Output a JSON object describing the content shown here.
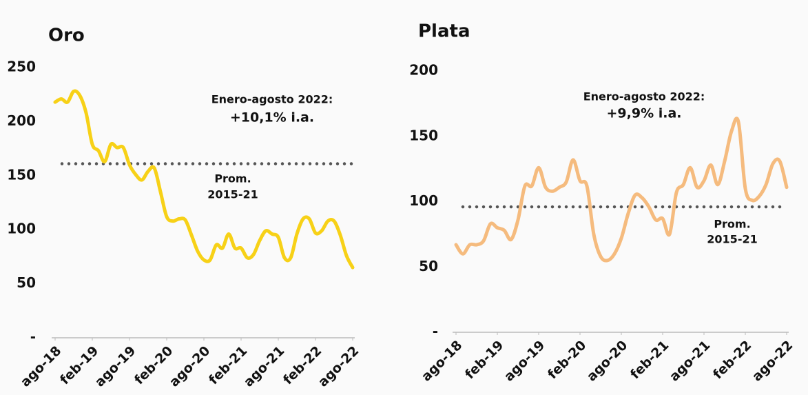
{
  "chart_data": [
    {
      "type": "line",
      "title": "Oro",
      "categories": [
        "ago-18",
        null,
        null,
        null,
        null,
        null,
        "feb-19",
        null,
        null,
        null,
        null,
        null,
        "ago-19",
        null,
        null,
        null,
        null,
        null,
        "feb-20",
        null,
        null,
        null,
        null,
        null,
        "ago-20",
        null,
        null,
        null,
        null,
        null,
        "feb-21",
        null,
        null,
        null,
        null,
        null,
        "ago-21",
        null,
        null,
        null,
        null,
        null,
        "feb-22",
        null,
        null,
        null,
        null,
        null,
        "ago-22"
      ],
      "series": [
        {
          "name": "Oro",
          "color": "#f7d117",
          "values": [
            218,
            221,
            218,
            228,
            224,
            208,
            179,
            173,
            163,
            179,
            176,
            176,
            160,
            151,
            146,
            154,
            157,
            135,
            112,
            108,
            110,
            109,
            95,
            80,
            72,
            72,
            86,
            83,
            96,
            83,
            83,
            74,
            77,
            90,
            99,
            96,
            93,
            74,
            74,
            96,
            110,
            110,
            97,
            99,
            108,
            108,
            95,
            76,
            65
          ]
        }
      ],
      "ylim": [
        0,
        250
      ],
      "yticks": [
        {
          "value": 0,
          "label": "-"
        },
        50,
        100,
        150,
        200,
        250
      ],
      "reference_line": {
        "value": 161,
        "color": "#555555"
      },
      "annotations": [
        {
          "lines": [
            "Enero-agosto 2022:",
            "+10,1% i.a."
          ]
        },
        {
          "lines": [
            "Prom.",
            "2015-21"
          ]
        }
      ],
      "grid": false
    },
    {
      "type": "line",
      "title": "Plata",
      "categories": [
        "ago-18",
        null,
        null,
        null,
        null,
        null,
        "feb-19",
        null,
        null,
        null,
        null,
        null,
        "ago-19",
        null,
        null,
        null,
        null,
        null,
        "feb-20",
        null,
        null,
        null,
        null,
        null,
        "ago-20",
        null,
        null,
        null,
        null,
        null,
        "feb-21",
        null,
        null,
        null,
        null,
        null,
        "ago-21",
        null,
        null,
        null,
        null,
        null,
        "feb-22",
        null,
        null,
        null,
        null,
        null,
        "ago-22"
      ],
      "series": [
        {
          "name": "Plata",
          "color": "#f5bb7e",
          "values": [
            67,
            60,
            67,
            67,
            70,
            83,
            80,
            78,
            71,
            86,
            112,
            112,
            126,
            111,
            108,
            111,
            115,
            132,
            116,
            112,
            75,
            58,
            55,
            60,
            72,
            91,
            105,
            103,
            96,
            86,
            87,
            75,
            107,
            113,
            126,
            111,
            116,
            128,
            113,
            131,
            154,
            161,
            110,
            101,
            104,
            113,
            129,
            131,
            111
          ]
        }
      ],
      "ylim": [
        0,
        200
      ],
      "yticks": [
        {
          "value": 0,
          "label": "-"
        },
        50,
        100,
        150,
        200
      ],
      "reference_line": {
        "value": 96,
        "color": "#555555"
      },
      "annotations": [
        {
          "lines": [
            "Enero-agosto 2022:",
            "+9,9% i.a."
          ]
        },
        {
          "lines": [
            "Prom.",
            "2015-21"
          ]
        }
      ],
      "grid": false
    }
  ]
}
